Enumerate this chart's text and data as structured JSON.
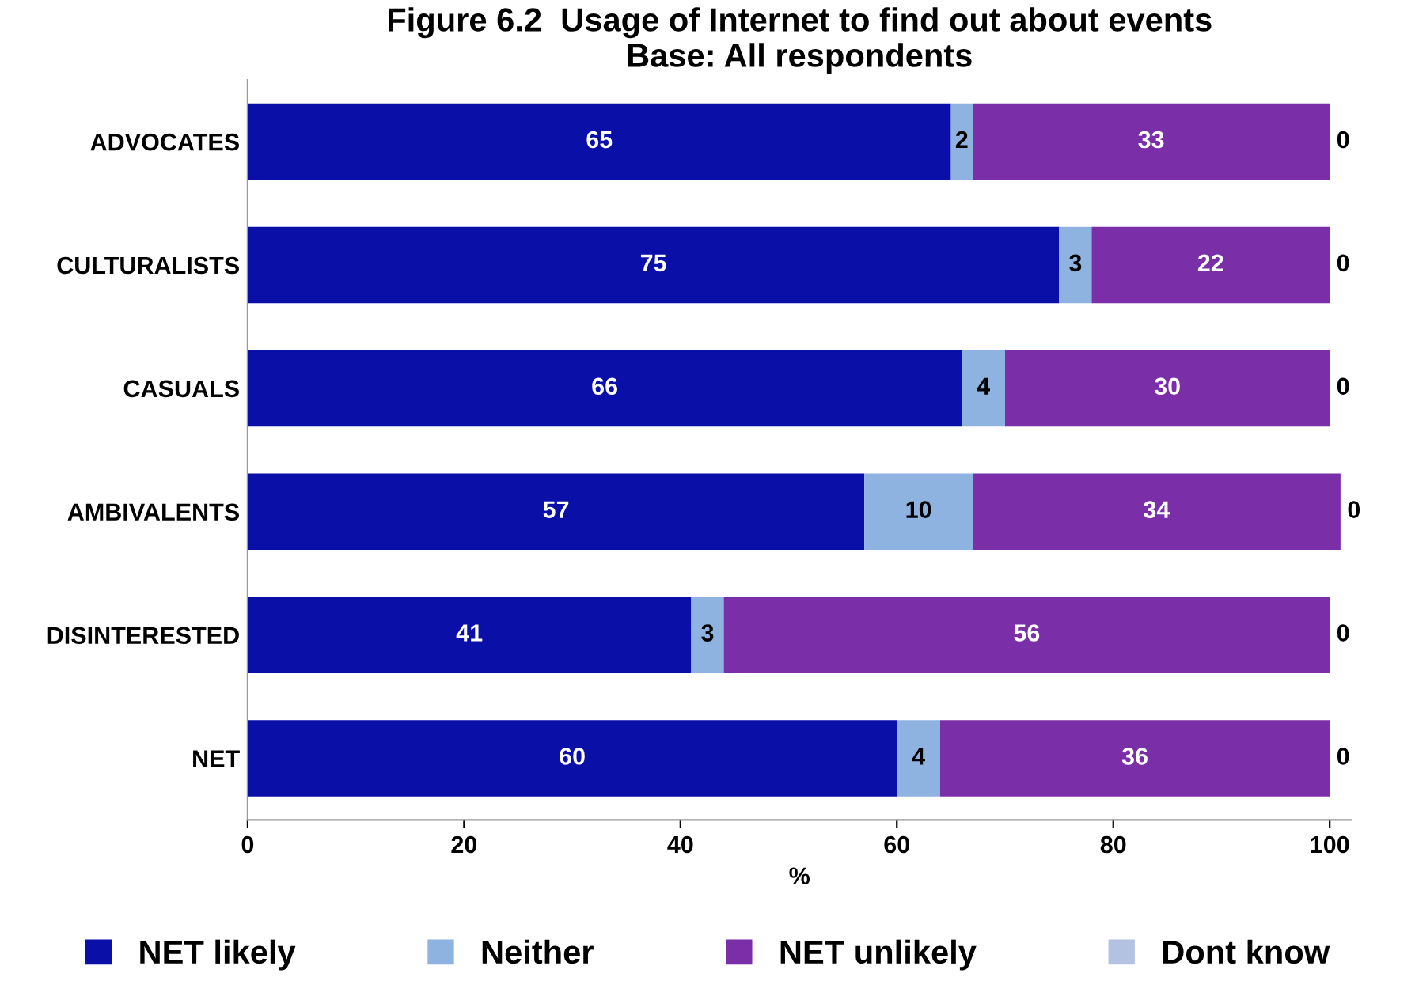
{
  "chart_data": {
    "type": "bar",
    "orientation": "horizontal",
    "stacked": true,
    "title": "Figure 6.2  Usage of Internet to find out about events\nBase: All respondents",
    "xlabel": "%",
    "categories": [
      "ADVOCATES",
      "CULTURALISTS",
      "CASUALS",
      "AMBIVALENTS",
      "DISINTERESTED",
      "NET"
    ],
    "series": [
      {
        "name": "NET likely",
        "color": "#0a0fa8",
        "values": [
          65,
          75,
          66,
          57,
          41,
          60
        ]
      },
      {
        "name": "Neither",
        "color": "#8fb3e0",
        "values": [
          2,
          3,
          4,
          10,
          3,
          4
        ]
      },
      {
        "name": "NET unlikely",
        "color": "#7a2fa8",
        "values": [
          33,
          22,
          30,
          34,
          56,
          36
        ]
      },
      {
        "name": "Dont know",
        "color": "#b3c2e0",
        "values": [
          0,
          0,
          0,
          0,
          0,
          0
        ]
      }
    ],
    "xlim": [
      0,
      102
    ],
    "xticks": [
      0,
      20,
      40,
      60,
      80,
      100
    ],
    "data_labels": true,
    "legend": "bottom",
    "grid": false
  }
}
